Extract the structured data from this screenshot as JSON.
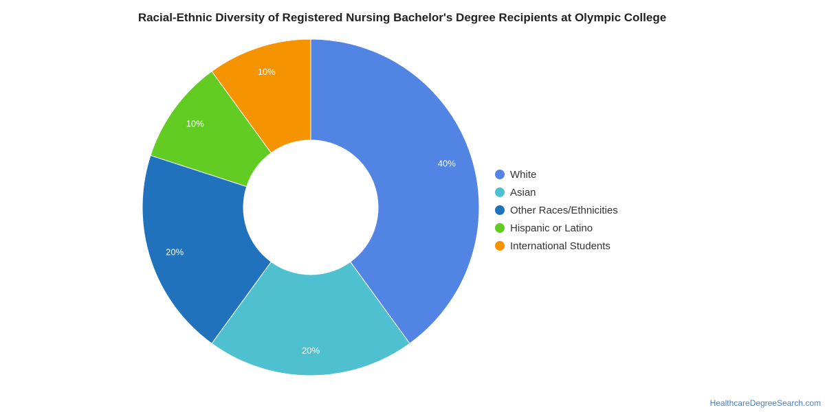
{
  "title": "Racial-Ethnic Diversity of Registered Nursing Bachelor's Degree Recipients at Olympic College",
  "source": "HealthcareDegreeSearch.com",
  "chart_data": {
    "type": "pie",
    "donut": true,
    "title": "Racial-Ethnic Diversity of Registered Nursing Bachelor's Degree Recipients at Olympic College",
    "legend_position": "right",
    "slices": [
      {
        "label": "White",
        "value": 40,
        "display": "40%",
        "color": "#5285e3"
      },
      {
        "label": "Asian",
        "value": 20,
        "display": "20%",
        "color": "#4fc0cf"
      },
      {
        "label": "Other Races/Ethnicities",
        "value": 20,
        "display": "20%",
        "color": "#1f72bb"
      },
      {
        "label": "Hispanic or Latino",
        "value": 10,
        "display": "10%",
        "color": "#62cc23"
      },
      {
        "label": "International Students",
        "value": 10,
        "display": "10%",
        "color": "#f59300"
      }
    ]
  }
}
